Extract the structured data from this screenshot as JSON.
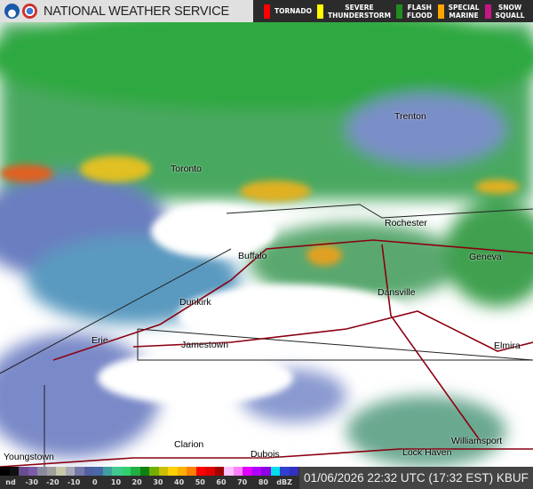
{
  "header": {
    "title": "NATIONAL WEATHER SERVICE",
    "logos": [
      "noaa-logo",
      "nws-logo"
    ],
    "warnings": [
      {
        "label": "TORNADO",
        "color": "#ff0000"
      },
      {
        "label": "SEVERE\nTHUNDERSTORM",
        "color": "#ffff00"
      },
      {
        "label": "FLASH\nFLOOD",
        "color": "#228b22"
      },
      {
        "label": "SPECIAL\nMARINE",
        "color": "#ffa500"
      },
      {
        "label": "SNOW\nSQUALL",
        "color": "#c71585"
      }
    ]
  },
  "map": {
    "cities": [
      "Trenton",
      "Toronto",
      "Rochester",
      "Buffalo",
      "Geneva",
      "Dansville",
      "Dunkirk",
      "Erie",
      "Jamestown",
      "Elmira",
      "Clarion",
      "Dubois",
      "Youngstown",
      "Lock Haven",
      "Williamsport"
    ]
  },
  "legend": {
    "ticks": [
      "nd",
      "-30",
      "-20",
      "-10",
      "0",
      "10",
      "20",
      "30",
      "40",
      "50",
      "60",
      "70",
      "80",
      "dBZ"
    ],
    "colors": [
      "#000",
      "#111",
      "#6a4c93",
      "#7a5ca8",
      "#8a8aa0",
      "#a0a0a0",
      "#c8c8a8",
      "#a8a8b8",
      "#7878a8",
      "#5060a0",
      "#4868a8",
      "#3fa0a0",
      "#40c890",
      "#30d070",
      "#20b040",
      "#108010",
      "#70b000",
      "#c8c000",
      "#ffd000",
      "#ffb000",
      "#ff8000",
      "#ff0000",
      "#e00000",
      "#a00000",
      "#ffc0ff",
      "#ff80ff",
      "#e000ff",
      "#b000ff",
      "#9000e0",
      "#00e0e8",
      "#3040d0",
      "#3030c0"
    ]
  },
  "timestamp": "01/06/2026 22:32 UTC (17:32 EST) KBUF"
}
